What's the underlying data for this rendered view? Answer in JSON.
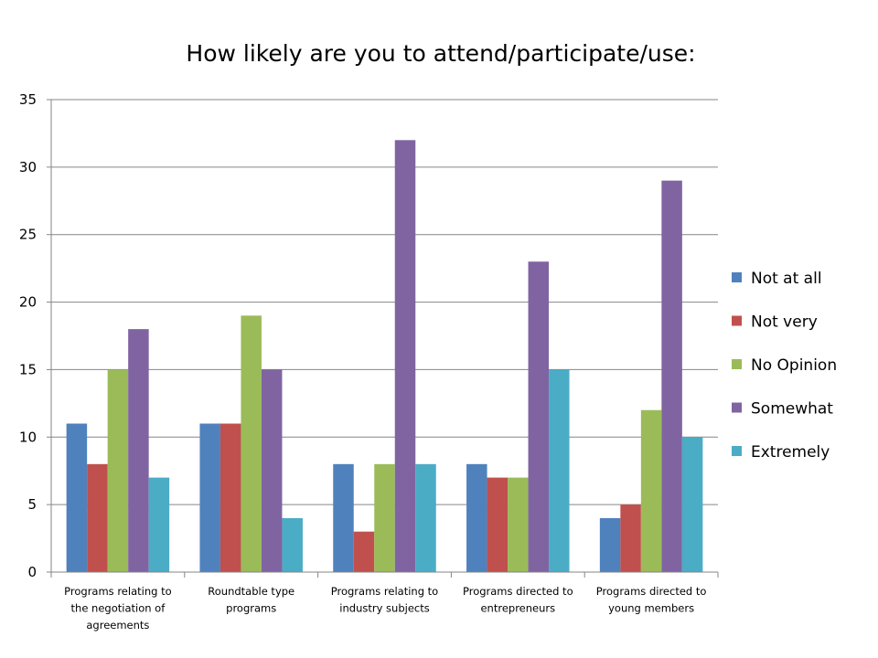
{
  "chart_data": {
    "type": "bar",
    "title": "How likely are you to attend/participate/use:",
    "xlabel": "",
    "ylabel": "",
    "ylim": [
      0,
      35
    ],
    "yticks": [
      0,
      5,
      10,
      15,
      20,
      25,
      30,
      35
    ],
    "grid": true,
    "legend_position": "right",
    "categories": [
      [
        "Programs relating to",
        "the negotiation of",
        "agreements"
      ],
      [
        "Roundtable type",
        "programs"
      ],
      [
        "Programs relating to",
        "industry subjects"
      ],
      [
        "Programs directed to",
        "entrepreneurs"
      ],
      [
        "Programs directed to",
        "young members"
      ]
    ],
    "series": [
      {
        "name": "Not at all",
        "color": "#4F81BD",
        "values": [
          11,
          11,
          8,
          8,
          4
        ]
      },
      {
        "name": "Not very",
        "color": "#C0504D",
        "values": [
          8,
          11,
          3,
          7,
          5
        ]
      },
      {
        "name": "No Opinion",
        "color": "#9BBB59",
        "values": [
          15,
          19,
          8,
          7,
          12
        ]
      },
      {
        "name": "Somewhat",
        "color": "#8064A2",
        "values": [
          18,
          15,
          32,
          23,
          29
        ]
      },
      {
        "name": "Extremely",
        "color": "#4BACC6",
        "values": [
          7,
          4,
          8,
          15,
          10
        ]
      }
    ]
  }
}
